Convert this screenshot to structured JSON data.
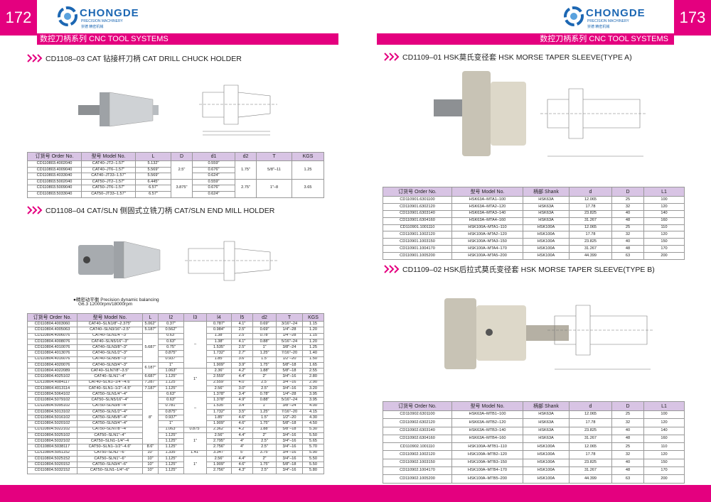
{
  "left": {
    "page_number": "172",
    "brand": "CHONGDE",
    "brand_sub": "PRECISION MACHINERY",
    "brand_cn": "崇德 精密机械",
    "banner": "数控刀柄系列 CNC TOOL SYSTEMS",
    "section1": {
      "title": "CD1108–03 CAT 钻接杆刀柄   CAT DRILL CHUCK HOLDER",
      "table": {
        "headers": [
          "订货号 Order No.",
          "型号 Model No.",
          "L",
          "D",
          "d1",
          "d2",
          "T",
          "KGS"
        ],
        "rows": [
          [
            "CD110803.4002040",
            "CAT40–JT2–1.57\"",
            "5.132\"",
            "2.5\"",
            "0.559\"",
            "1.75\"",
            "5/8\"–11",
            "1.25"
          ],
          [
            "CD110803.4009040",
            "CAT40–JT6–1.57\"",
            "5.569\"",
            null,
            "0.676\"",
            null,
            null,
            null
          ],
          [
            "CD110803.4033040",
            "CAT40–JT33–1.57\"",
            "5.569\"",
            null,
            "0.624\"",
            null,
            null,
            null
          ],
          [
            "CD110803.5002040",
            "CAT50–JT2–1.57\"",
            "6.445\"",
            "3.875\"",
            "0.559\"",
            "2.75\"",
            "1\"–8",
            "3.65"
          ],
          [
            "CD110803.5009040",
            "CAT50–JT6–1.57\"",
            "6.57\"",
            null,
            "0.676\"",
            null,
            null,
            null
          ],
          [
            "CD110803.5033040",
            "CAT50–JT33–1.57\"",
            "6.57\"",
            null,
            "0.624\"",
            null,
            null,
            null
          ]
        ]
      }
    },
    "section2": {
      "title": "CD1108–04 CAT/SLN 侧固式立铣刀柄  CAT/SLN  END MILL HOLDER",
      "note": [
        "●精密动平衡 Precision dynamic balancing",
        "G6.3 12000rpm/18000rpm"
      ],
      "table": {
        "headers": [
          "订货号 Order No.",
          "型号 Model No.",
          "L",
          "l2",
          "l3",
          "l4",
          "l5",
          "d2",
          "T",
          "KGS"
        ],
        "rows": [
          [
            "CD110804.4003060",
            "CAT40–SLN1/8\"–2.375\"",
            "5.062\"",
            "0.37\"",
            "–",
            "0.787\"",
            "4.1\"",
            "0.69\"",
            "3/16\"–24",
            "1.15"
          ],
          [
            "CD110804.4005063",
            "CAT40–SLN3/16\"–2.5\"",
            "5.187\"",
            "0.562\"",
            null,
            "0.984\"",
            "2.5\"",
            "0.69\"",
            "1/4\"–28",
            "1.20"
          ],
          [
            "CD110804.4006076",
            "CAT40–SLN1/4\"–3\"",
            "5.687\"",
            "0.63\"",
            null,
            "1.38\"",
            "2.5\"",
            "0.78\"",
            "1/4\"–28",
            "1.15"
          ],
          [
            "CD110804.4008076",
            "CAT40–SLN5/16\"–3\"",
            null,
            "0.63\"",
            null,
            "1.38\"",
            "4.1\"",
            "0.88\"",
            "5/16\"–24",
            "1.20"
          ],
          [
            "CD110804.4010076",
            "CAT40–SLN3/8\"–3\"",
            null,
            "0.75\"",
            null,
            "1.535\"",
            "2.5\"",
            "1\"",
            "3/8\"–24",
            "1.25"
          ],
          [
            "CD110804.4013076",
            "CAT40–SLN1/2\"–3\"",
            null,
            "0.875\"",
            null,
            "1.732\"",
            "2.7\"",
            "1.25\"",
            "7/16\"–20",
            "1.40"
          ],
          [
            "CD110804.4016076",
            "CAT40–SLN5/8\"–3\"",
            null,
            "0.937\"",
            null,
            "1.85\"",
            "3.6\"",
            "1.5\"",
            "1/2\"–20",
            "1.50"
          ],
          [
            "CD110804.4020076",
            "CAT40–SLN3/4\"–3\"",
            "6.187\"",
            "1\"",
            null,
            "1.909\"",
            "3.9\"",
            "1.75\"",
            "5/8\"–18",
            "1.65"
          ],
          [
            "CD110804.4022089",
            "CAT40–SLN7/8\"–3.5\"",
            null,
            "1.063\"",
            "1\"",
            "2.36\"",
            "4.2\"",
            "1.88\"",
            "5/8\"–18",
            "2.55"
          ],
          [
            "CD110804.4025102",
            "CAT40–SLN1\"–4\"",
            "6.687\"",
            "1.125\"",
            null,
            "2.559\"",
            "4.4\"",
            "2\"",
            "3/4\"–16",
            "2.80"
          ],
          [
            "CD110804.4084117",
            "CAT40–SLN1–1/4\"–4.6\"",
            "7.287\"",
            "1.125\"",
            null,
            "2.559\"",
            "4.0\"",
            "2.5\"",
            "3/4\"–16",
            "2.90"
          ],
          [
            "CD110804.4013114",
            "CAT40–SLN1–1/2\"–4.5\"",
            "7.187\"",
            "1.125\"",
            null,
            "2.56\"",
            "3.0\"",
            "2.5\"",
            "3/4\"–16",
            "3.20"
          ],
          [
            "CD110804.5064102",
            "CAT50–SLN1/4\"–4\"",
            "8\"",
            "0.63\"",
            "–",
            "1.378\"",
            "3.4\"",
            "0.78\"",
            "1/4\"–28",
            "3.95"
          ],
          [
            "CD110804.5079102",
            "CAT50–SLN5/16\"–4\"",
            null,
            "0.63\"",
            null,
            "1.378\"",
            "4.9\"",
            "0.88\"",
            "5/16\"–24",
            "3.95"
          ],
          [
            "CD110804.5095102",
            "CAT50–SLN3/8\"–4\"",
            null,
            "0.781\"",
            null,
            "1.535\"",
            "3.4\"",
            "1\"",
            "3/8\"–24",
            "4.00"
          ],
          [
            "CD110804.5013102",
            "CAT50–SLN1/2\"–4\"",
            null,
            "0.875\"",
            null,
            "1.732\"",
            "3.5\"",
            "1.25\"",
            "7/16\"–20",
            "4.15"
          ],
          [
            "CD110804.5016102",
            "CAT50–SLN5/8\"–4\"",
            null,
            "0.937\"",
            null,
            "1.85\"",
            "4.6\"",
            "1.5\"",
            "1/2\"–20",
            "4.30"
          ],
          [
            "CD110804.5020102",
            "CAT50–SLN3/4\"–4\"",
            null,
            "1\"",
            null,
            "1.909\"",
            "4.6\"",
            "1.75\"",
            "5/8\"–18",
            "4.50"
          ],
          [
            "CD110804.5022102",
            "CAT50–SLN7/8\"–4\"",
            null,
            "1.063\"",
            "0.875\"",
            "2.362\"",
            "4.2\"",
            "1.88\"",
            "5/8\"–18",
            "5.30"
          ],
          [
            "CD110804.5025102",
            "CAT50–SLN1\"–4\"",
            null,
            "1.125\"",
            "1\"",
            "2.56\"",
            "4.4\"",
            "2\"",
            "3/4\"–16",
            "5.50"
          ],
          [
            "CD110804.5032102",
            "CAT50–SLN1–1/4\"–4",
            null,
            "1.125\"",
            null,
            "2.795\"",
            "4\"",
            "2.5\"",
            "3/4\"–16",
            "5.65"
          ],
          [
            "CD110804.5038117",
            "CAT50–SLN1–1/2\"–4.6\"",
            "8.6\"",
            "1.125\"",
            null,
            "2.756\"",
            "4\"",
            "2.5\"",
            "3/4\"–16",
            "5.70"
          ],
          [
            "CD110804.5051152",
            "CAT50–SLN2\"–6\"",
            "10\"",
            "1.335\"",
            "1.41\"",
            "3.347\"",
            "5\"",
            "3.75\"",
            "3/4\"–16",
            "5.90"
          ],
          [
            "CD110804.5025152",
            "CAT50–SLN1\"–6\"",
            "10\"",
            "1.125\"",
            "1\"",
            "2.56\"",
            "4.4\"",
            "2\"",
            "3/4\"–16",
            "5.50"
          ],
          [
            "CD110804.5020152",
            "CAT50–SLN3/4\"–6\"",
            "10\"",
            "1.125\"",
            null,
            "1.909\"",
            "4.6\"",
            "1.75\"",
            "5/8\"–18",
            "5.50"
          ],
          [
            "CD110804.5032152",
            "CAT50–SLN1–1/4\"–6\"",
            "10\"",
            "1.125\"",
            null,
            "2.756\"",
            "4.3\"",
            "2.5\"",
            "3/4\"–16",
            "5.80"
          ]
        ]
      }
    }
  },
  "right": {
    "page_number": "173",
    "brand": "CHONGDE",
    "brand_sub": "PRECISION MACHINERY",
    "brand_cn": "崇德 精密机械",
    "banner": "数控刀柄系列 CNC TOOL SYSTEMS",
    "section1": {
      "title": "CD1109–01 HSK莫氏变径套 HSK MORSE TAPER SLEEVE(TYPE A)",
      "table": {
        "headers": [
          "订货号 Order No.",
          "型号 Model No.",
          "柄部 Shank",
          "d",
          "D",
          "L1"
        ],
        "rows": [
          [
            "CD110901.6301100",
            "HSK63A–MTA1–100",
            "HSK63A",
            "12.065",
            "25",
            "100"
          ],
          [
            "CD110901.6302120",
            "HSK63A–MTA2–120",
            "HSK63A",
            "17.78",
            "32",
            "120"
          ],
          [
            "CD110901.6303140",
            "HSK63A–MTA3–140",
            "HSK63A",
            "23.825",
            "40",
            "140"
          ],
          [
            "CD110901.6304160",
            "HSK63A–MTA4–160",
            "HSK63A",
            "31.267",
            "48",
            "160"
          ],
          [
            "CD110901.1001110",
            "HSK100A–MTA1–110",
            "HSK100A",
            "12.065",
            "25",
            "110"
          ],
          [
            "CD110901.1002120",
            "HSK100A–MTA2–120",
            "HSK100A",
            "17.78",
            "32",
            "120"
          ],
          [
            "CD110901.1003150",
            "HSK100A–MTA3–150",
            "HSK100A",
            "23.825",
            "40",
            "150"
          ],
          [
            "CD110901.1004170",
            "HSK100A–MTA4–170",
            "HSK100A",
            "31.267",
            "48",
            "170"
          ],
          [
            "CD110901.1005200",
            "HSK100A–MTA5–200",
            "HSK100A",
            "44.399",
            "63",
            "200"
          ]
        ]
      }
    },
    "section2": {
      "title": "CD1109–02 HSK后拉式莫氏变径套 HSK MORSE TAPER SLEEVE(TYPE B)",
      "table": {
        "headers": [
          "订货号 Order No.",
          "型号 Model No.",
          "柄部 Shank",
          "d",
          "D",
          "L1"
        ],
        "rows": [
          [
            "CD110902.6301100",
            "HSK63A–MTB1–100",
            "HSK63A",
            "12.065",
            "25",
            "100"
          ],
          [
            "CD110902.6302120",
            "HSK63A–MTB2–120",
            "HSK63A",
            "17.78",
            "32",
            "120"
          ],
          [
            "CD110902.6303140",
            "HSK63A–MTB3–140",
            "HSK63A",
            "23.825",
            "40",
            "140"
          ],
          [
            "CD110902.6304160",
            "HSK63A–MTB4–160",
            "HSK63A",
            "31.267",
            "48",
            "160"
          ],
          [
            "CD110902.1001110",
            "HSK100A–MTB1–110",
            "HSK100A",
            "12.065",
            "25",
            "110"
          ],
          [
            "CD110902.1002120",
            "HSK100A–MTB2–120",
            "HSK100A",
            "17.78",
            "32",
            "120"
          ],
          [
            "CD110902.1003150",
            "HSK100A–MTB3–150",
            "HSK100A",
            "23.825",
            "40",
            "150"
          ],
          [
            "CD110902.1004170",
            "HSK100A–MTB4–170",
            "HSK100A",
            "31.267",
            "48",
            "170"
          ],
          [
            "CD110902.1005200",
            "HSK100A–MTB5–200",
            "HSK100A",
            "44.399",
            "63",
            "200"
          ]
        ]
      }
    }
  }
}
